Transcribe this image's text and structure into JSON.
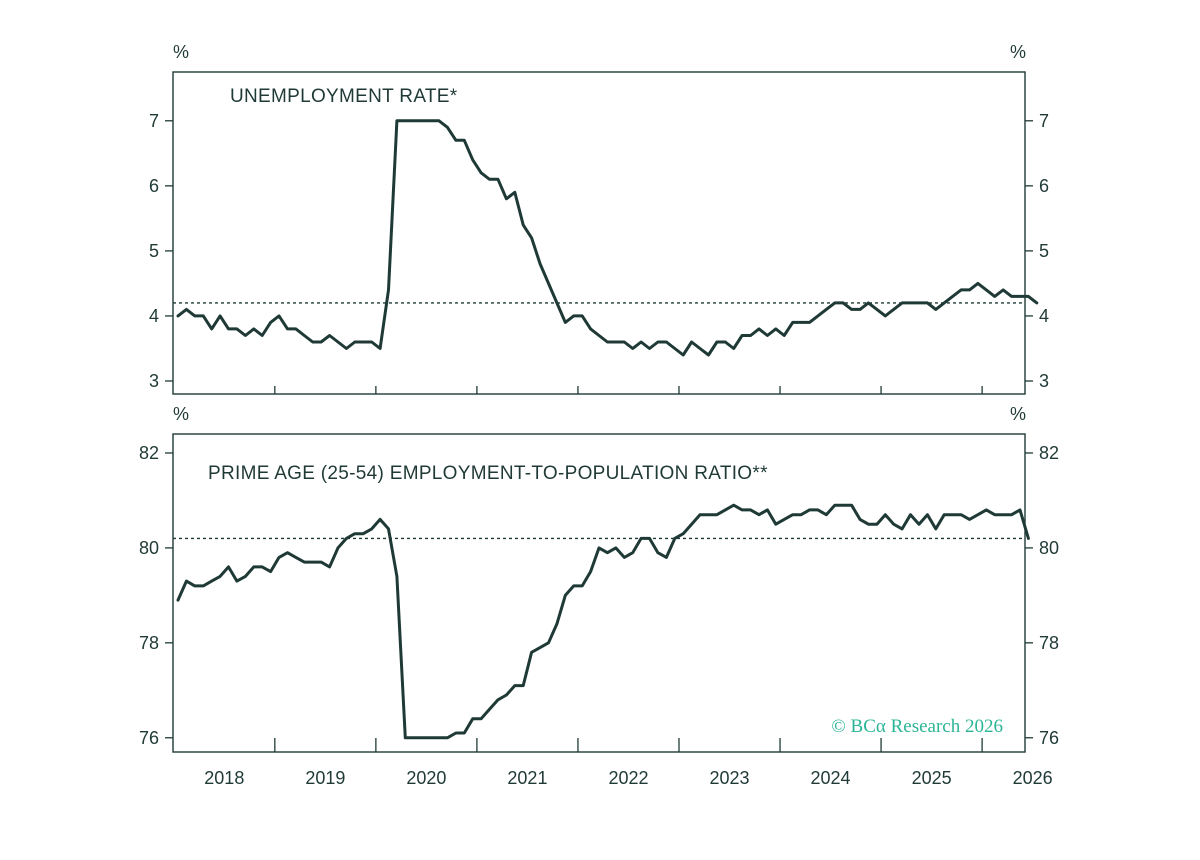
{
  "chart_data": [
    {
      "type": "line",
      "title": "UNEMPLOYMENT RATE*",
      "left_unit": "%",
      "right_unit": "%",
      "ylim": [
        2.8,
        7.75
      ],
      "yticks": [
        3,
        4,
        5,
        6,
        7
      ],
      "reference_line": 4.2,
      "x_start": "2018-01",
      "series": [
        {
          "values": [
            4.0,
            4.1,
            4.0,
            4.0,
            3.8,
            4.0,
            3.8,
            3.8,
            3.7,
            3.8,
            3.7,
            3.9,
            4.0,
            3.8,
            3.8,
            3.7,
            3.6,
            3.6,
            3.7,
            3.6,
            3.5,
            3.6,
            3.6,
            3.6,
            3.5,
            4.4,
            7.0,
            7.0,
            7.0,
            7.0,
            7.0,
            7.0,
            6.9,
            6.7,
            6.7,
            6.4,
            6.2,
            6.1,
            6.1,
            5.8,
            5.9,
            5.4,
            5.2,
            4.8,
            4.5,
            4.2,
            3.9,
            4.0,
            4.0,
            3.8,
            3.7,
            3.6,
            3.6,
            3.6,
            3.5,
            3.6,
            3.5,
            3.6,
            3.6,
            3.5,
            3.4,
            3.6,
            3.5,
            3.4,
            3.6,
            3.6,
            3.5,
            3.7,
            3.7,
            3.8,
            3.7,
            3.8,
            3.7,
            3.9,
            3.9,
            3.9,
            4.0,
            4.1,
            4.2,
            4.2,
            4.1,
            4.1,
            4.2,
            4.1,
            4.0,
            4.1,
            4.2,
            4.2,
            4.2,
            4.2,
            4.1,
            4.2,
            4.3,
            4.4,
            4.4,
            4.5,
            4.4,
            4.3,
            4.4,
            4.3,
            4.3,
            4.3,
            4.2
          ]
        }
      ]
    },
    {
      "type": "line",
      "title": "PRIME AGE (25-54) EMPLOYMENT-TO-POPULATION RATIO**",
      "left_unit": "%",
      "right_unit": "%",
      "ylim": [
        75.7,
        82.4
      ],
      "yticks": [
        76,
        78,
        80,
        82
      ],
      "reference_line": 80.2,
      "x_start": "2018-01",
      "series": [
        {
          "values": [
            78.9,
            79.3,
            79.2,
            79.2,
            79.3,
            79.4,
            79.6,
            79.3,
            79.4,
            79.6,
            79.6,
            79.5,
            79.8,
            79.9,
            79.8,
            79.7,
            79.7,
            79.7,
            79.6,
            80.0,
            80.2,
            80.3,
            80.3,
            80.4,
            80.6,
            80.4,
            79.4,
            76.0,
            76.0,
            76.0,
            76.0,
            76.0,
            76.0,
            76.1,
            76.1,
            76.4,
            76.4,
            76.6,
            76.8,
            76.9,
            77.1,
            77.1,
            77.8,
            77.9,
            78.0,
            78.4,
            79.0,
            79.2,
            79.2,
            79.5,
            80.0,
            79.9,
            80.0,
            79.8,
            79.9,
            80.2,
            80.2,
            79.9,
            79.8,
            80.2,
            80.3,
            80.5,
            80.7,
            80.7,
            80.7,
            80.8,
            80.9,
            80.8,
            80.8,
            80.7,
            80.8,
            80.5,
            80.6,
            80.7,
            80.7,
            80.8,
            80.8,
            80.7,
            80.9,
            80.9,
            80.9,
            80.6,
            80.5,
            80.5,
            80.7,
            80.5,
            80.4,
            80.7,
            80.5,
            80.7,
            80.4,
            80.7,
            80.7,
            80.7,
            80.6,
            80.7,
            80.8,
            80.7,
            80.7,
            80.7,
            80.8,
            80.2
          ]
        }
      ]
    }
  ],
  "x_axis": {
    "labels": [
      "2018",
      "2019",
      "2020",
      "2021",
      "2022",
      "2023",
      "2024",
      "2025",
      "2026"
    ]
  },
  "credit": "© BCα Research 2026",
  "colors": {
    "ink": "#1f3a36",
    "accent": "#2bb596"
  }
}
